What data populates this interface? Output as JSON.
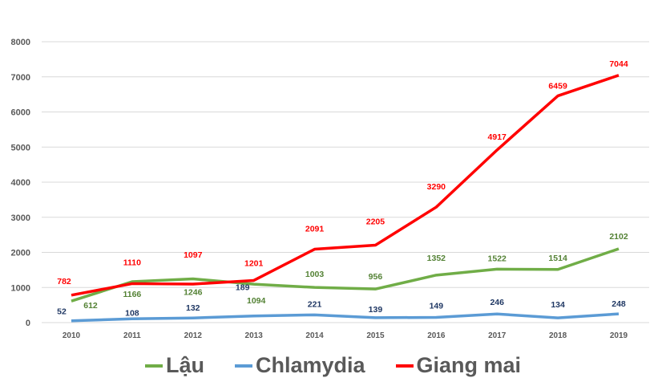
{
  "chart_data": {
    "type": "line",
    "title": "",
    "xlabel": "",
    "ylabel": "",
    "x": [
      "2010",
      "2011",
      "2012",
      "2013",
      "2014",
      "2015",
      "2016",
      "2017",
      "2018",
      "2019"
    ],
    "ylim": [
      0,
      8000
    ],
    "yticks": [
      "0",
      "1000",
      "2000",
      "3000",
      "4000",
      "5000",
      "6000",
      "7000",
      "8000"
    ],
    "grid": true,
    "legend_position": "bottom",
    "series": [
      {
        "name": "Lậu",
        "color": "#70AD47",
        "label_color": "#548235",
        "values": [
          612,
          1166,
          1246,
          1094,
          1003,
          956,
          1352,
          1522,
          1514,
          2102
        ]
      },
      {
        "name": "Chlamydia",
        "color": "#5B9BD5",
        "label_color": "#203864",
        "values": [
          52,
          108,
          132,
          189,
          221,
          139,
          149,
          246,
          134,
          248
        ]
      },
      {
        "name": "Giang mai",
        "color": "#FF0000",
        "label_color": "#FF0000",
        "values": [
          782,
          1110,
          1097,
          1201,
          2091,
          2205,
          3290,
          4917,
          6459,
          7044
        ]
      }
    ]
  }
}
